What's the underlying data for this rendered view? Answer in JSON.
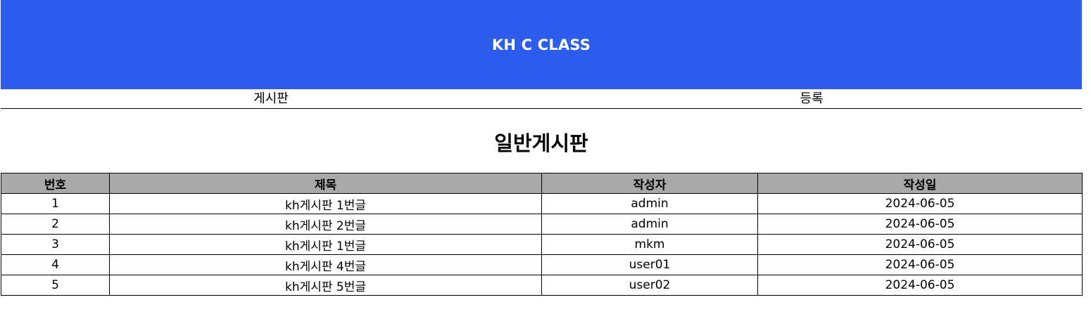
{
  "header": {
    "title": "KH C CLASS"
  },
  "nav": {
    "items": [
      "게시판",
      "등록"
    ]
  },
  "board": {
    "title": "일반게시판",
    "columns": [
      "번호",
      "제목",
      "작성자",
      "작성일"
    ],
    "rows": [
      [
        "1",
        "kh게시판 1번글",
        "admin",
        "2024-06-05"
      ],
      [
        "2",
        "kh게시판 2번글",
        "admin",
        "2024-06-05"
      ],
      [
        "3",
        "kh게시판 1번글",
        "mkm",
        "2024-06-05"
      ],
      [
        "4",
        "kh게시판 4번글",
        "user01",
        "2024-06-05"
      ],
      [
        "5",
        "kh게시판 5번글",
        "user02",
        "2024-06-05"
      ]
    ]
  },
  "colors": {
    "header_bg": "#2e5ded",
    "table_header_bg": "#a9a9a9"
  }
}
